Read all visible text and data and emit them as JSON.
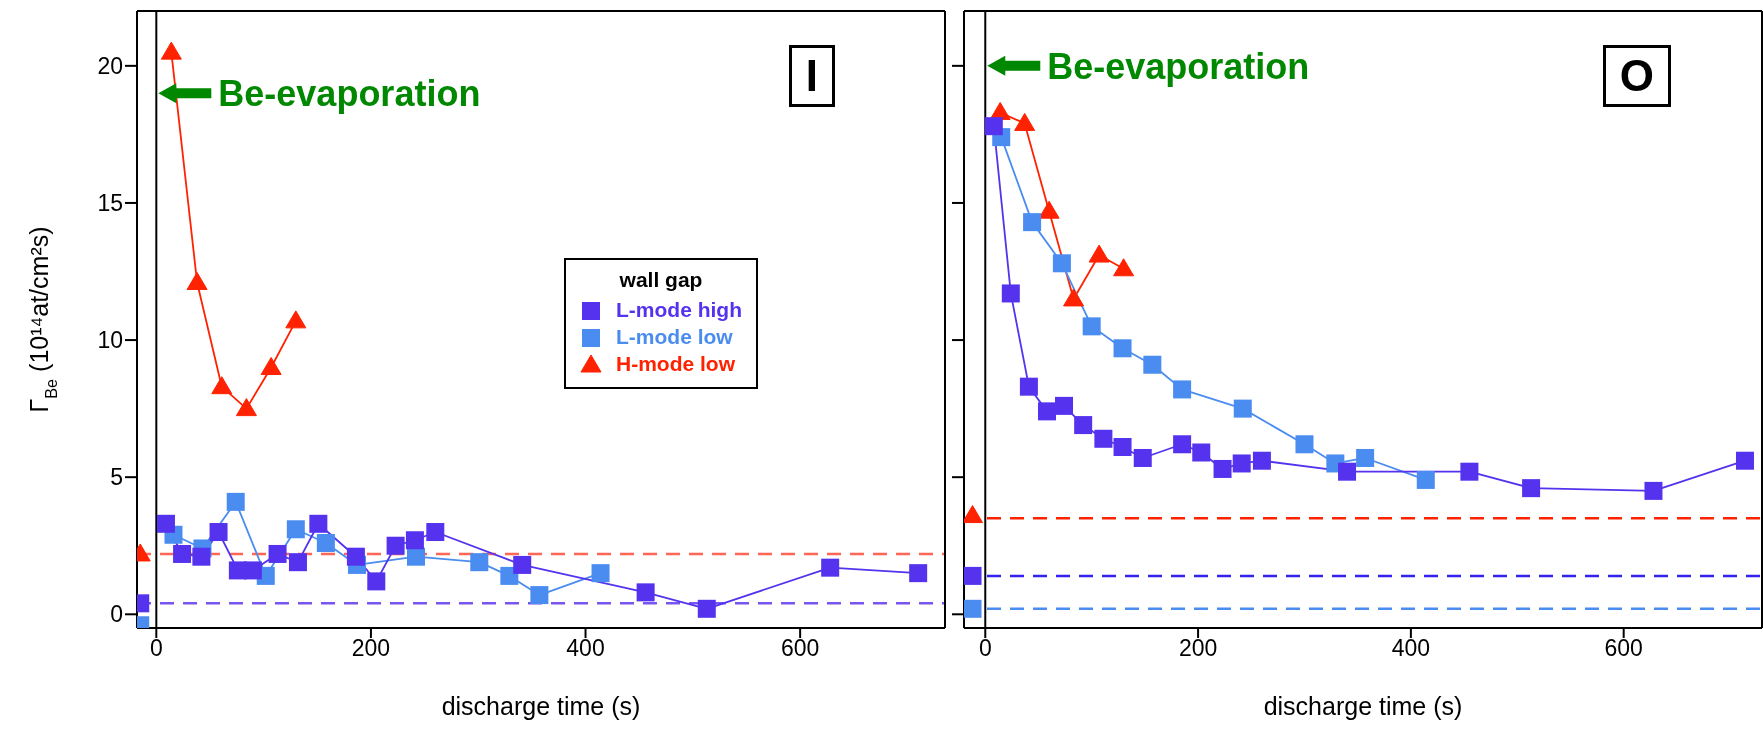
{
  "chart_data": [
    {
      "type": "line",
      "xlabel": "discharge time (s)",
      "ylabel": "Γ$_{Be}$ (10¹⁴at/cm²s)",
      "legend_title": "wall gap",
      "legend": "right",
      "xlim": [
        -18,
        735
      ],
      "xticks": [
        0,
        200,
        400,
        600
      ],
      "ylim": [
        -0.5,
        22
      ],
      "yticks": [
        0,
        5,
        10,
        15,
        20
      ],
      "grid": false,
      "line_style": "solid",
      "annotations": [
        {
          "text": "Be-evaporation",
          "x": 0,
          "y": 19
        },
        "I"
      ],
      "ref_lines": [
        {
          "axis": "x",
          "value": 0,
          "color": "#000000",
          "line_style": "solid"
        },
        {
          "axis": "y",
          "value": 2.2,
          "color": "#ff6655",
          "line_style": "dashed"
        },
        {
          "axis": "y",
          "value": 0.4,
          "color": "#7755ee",
          "line_style": "dashed"
        }
      ],
      "series": [
        {
          "name": "L-mode high",
          "color": "#5533ee",
          "marker": "square",
          "x": [
            9,
            24,
            42,
            58,
            76,
            90,
            113,
            132,
            151,
            186,
            205,
            223,
            241,
            260,
            341,
            456,
            513,
            628,
            710
          ],
          "values": [
            3.3,
            2.2,
            2.1,
            3.0,
            1.6,
            1.6,
            2.2,
            1.9,
            3.3,
            2.1,
            1.2,
            2.5,
            2.7,
            3.0,
            1.8,
            0.8,
            0.2,
            1.7,
            1.5
          ]
        },
        {
          "name": "L-mode low",
          "color": "#4a8cf0",
          "marker": "square",
          "x": [
            16,
            43,
            74,
            102,
            130,
            158,
            187,
            242,
            301,
            329,
            357,
            414
          ],
          "values": [
            2.9,
            2.4,
            4.1,
            1.4,
            3.1,
            2.6,
            1.8,
            2.1,
            1.9,
            1.4,
            0.7,
            1.5
          ]
        },
        {
          "name": "H-mode low",
          "color": "#ff2200",
          "marker": "triangle",
          "x": [
            14,
            38,
            61,
            84,
            107,
            130
          ],
          "values": [
            20.5,
            12.1,
            8.3,
            7.5,
            9.0,
            10.7
          ]
        },
        {
          "type": "scatter",
          "color": "#ff2200",
          "marker": "triangle",
          "x": [
            -15
          ],
          "values": [
            2.2
          ]
        },
        {
          "type": "scatter",
          "color": "#5533ee",
          "marker": "square",
          "x": [
            -15
          ],
          "values": [
            0.4
          ]
        },
        {
          "type": "scatter",
          "color": "#4a8cf0",
          "marker": "square",
          "x": [
            -15
          ],
          "values": [
            -0.4
          ]
        }
      ]
    },
    {
      "type": "line",
      "xlabel": "discharge time (s)",
      "xlim": [
        -20,
        730
      ],
      "xticks": [
        0,
        200,
        400,
        600
      ],
      "ylim": [
        -0.5,
        22
      ],
      "yticks": [
        0,
        5,
        10,
        15,
        20
      ],
      "grid": false,
      "tick_labels": "x",
      "line_style": "solid",
      "annotations": [
        {
          "text": "Be-evaporation",
          "x": 0,
          "y": 20
        },
        "O"
      ],
      "ref_lines": [
        {
          "axis": "x",
          "value": 0,
          "color": "#000000",
          "line_style": "solid"
        },
        {
          "axis": "y",
          "value": 3.5,
          "color": "#ff2200",
          "line_style": "dashed"
        },
        {
          "axis": "y",
          "value": 1.4,
          "color": "#3322ee",
          "line_style": "dashed"
        },
        {
          "axis": "y",
          "value": 0.2,
          "color": "#4a8cf0",
          "line_style": "dashed"
        }
      ],
      "series": [
        {
          "color": "#5533ee",
          "marker": "square",
          "x": [
            8,
            24,
            41,
            58,
            74,
            92,
            111,
            129,
            148,
            185,
            203,
            223,
            241,
            260,
            340,
            455,
            513,
            628,
            714
          ],
          "values": [
            17.8,
            11.7,
            8.3,
            7.4,
            7.6,
            6.9,
            6.4,
            6.1,
            5.7,
            6.2,
            5.9,
            5.3,
            5.5,
            5.6,
            5.2,
            5.2,
            4.6,
            4.5,
            5.6
          ]
        },
        {
          "color": "#4a8cf0",
          "marker": "square",
          "x": [
            15,
            44,
            72,
            100,
            129,
            157,
            185,
            242,
            300,
            329,
            357,
            414
          ],
          "values": [
            17.4,
            14.3,
            12.8,
            10.5,
            9.7,
            9.1,
            8.2,
            7.5,
            6.2,
            5.5,
            5.7,
            4.9
          ]
        },
        {
          "color": "#ff2200",
          "marker": "triangle",
          "x": [
            14,
            37,
            60,
            83,
            107,
            130
          ],
          "values": [
            18.3,
            17.9,
            14.7,
            11.5,
            13.1,
            12.6
          ]
        },
        {
          "type": "scatter",
          "color": "#ff2200",
          "marker": "triangle",
          "x": [
            -12
          ],
          "values": [
            3.6
          ]
        },
        {
          "type": "scatter",
          "color": "#5533ee",
          "marker": "square",
          "x": [
            -12
          ],
          "values": [
            1.4
          ]
        },
        {
          "type": "scatter",
          "color": "#4a8cf0",
          "marker": "square",
          "x": [
            -12
          ],
          "values": [
            0.2
          ]
        }
      ]
    }
  ]
}
